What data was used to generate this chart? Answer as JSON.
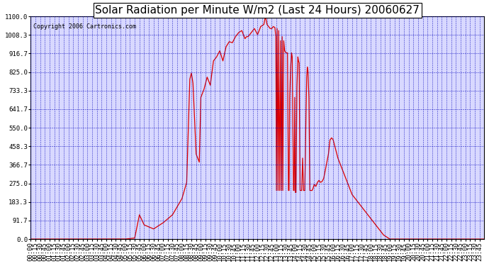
{
  "title": "Solar Radiation per Minute W/m2 (Last 24 Hours) 20060627",
  "copyright": "Copyright 2006 Cartronics.com",
  "title_bg": "#ffffff",
  "plot_bg_color": "#d8d8ff",
  "fig_bg_color": "#ffffff",
  "line_color": "#dd0000",
  "grid_color": "#0000bb",
  "ylim": [
    0.0,
    1100.0
  ],
  "yticks": [
    0.0,
    91.7,
    183.3,
    275.0,
    366.7,
    458.3,
    550.0,
    641.7,
    733.3,
    825.0,
    916.7,
    1008.3,
    1100.0
  ],
  "total_minutes": 1440,
  "title_fontsize": 11,
  "tick_fontsize": 6.5,
  "copyright_fontsize": 6
}
